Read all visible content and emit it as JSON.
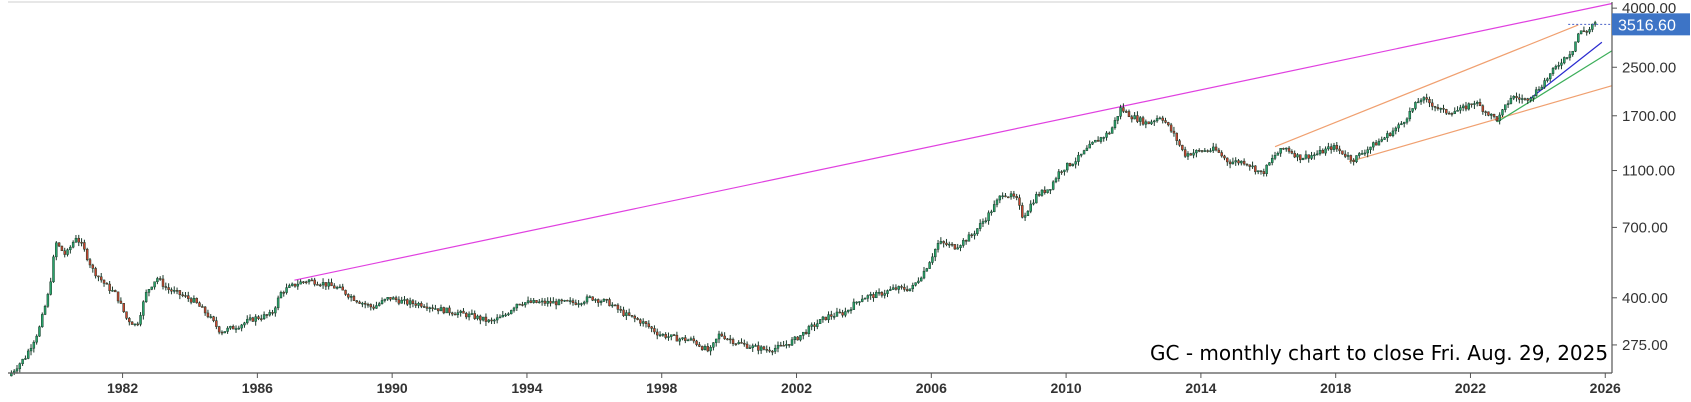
{
  "chart_data": {
    "type": "candlestick",
    "symbol": "GC",
    "interval": "monthly",
    "annotation": "GC - monthly chart to close Fri. Aug. 29, 2025",
    "last_price_label": "3516.60",
    "last_price": 3516.6,
    "y_scale": "log",
    "ylim": [
      220,
      4200
    ],
    "xlim": [
      1978.6,
      2026.2
    ],
    "y_ticks": [
      {
        "value": 275,
        "label": "275.00"
      },
      {
        "value": 400,
        "label": "400.00"
      },
      {
        "value": 700,
        "label": "700.00"
      },
      {
        "value": 1100,
        "label": "1100.00"
      },
      {
        "value": 1700,
        "label": "1700.00"
      },
      {
        "value": 2500,
        "label": "2500.00"
      },
      {
        "value": 4000,
        "label": "4000.00"
      }
    ],
    "x_ticks": [
      {
        "value": 1982,
        "label": "1982"
      },
      {
        "value": 1986,
        "label": "1986"
      },
      {
        "value": 1990,
        "label": "1990"
      },
      {
        "value": 1994,
        "label": "1994"
      },
      {
        "value": 1998,
        "label": "1998"
      },
      {
        "value": 2002,
        "label": "2002"
      },
      {
        "value": 2006,
        "label": "2006"
      },
      {
        "value": 2010,
        "label": "2010"
      },
      {
        "value": 2014,
        "label": "2014"
      },
      {
        "value": 2018,
        "label": "2018"
      },
      {
        "value": 2022,
        "label": "2022"
      },
      {
        "value": 2026,
        "label": "2026"
      }
    ],
    "price_path": [
      [
        1978.7,
        215
      ],
      [
        1979.2,
        250
      ],
      [
        1979.6,
        310
      ],
      [
        1979.9,
        420
      ],
      [
        1980.1,
        620
      ],
      [
        1980.4,
        560
      ],
      [
        1980.7,
        650
      ],
      [
        1980.9,
        600
      ],
      [
        1981.2,
        500
      ],
      [
        1981.6,
        440
      ],
      [
        1981.9,
        410
      ],
      [
        1982.2,
        340
      ],
      [
        1982.5,
        320
      ],
      [
        1982.8,
        420
      ],
      [
        1983.1,
        470
      ],
      [
        1983.4,
        430
      ],
      [
        1983.8,
        410
      ],
      [
        1984.2,
        390
      ],
      [
        1984.6,
        350
      ],
      [
        1985.0,
        305
      ],
      [
        1985.5,
        320
      ],
      [
        1986.0,
        340
      ],
      [
        1986.5,
        350
      ],
      [
        1986.8,
        420
      ],
      [
        1987.3,
        450
      ],
      [
        1987.6,
        460
      ],
      [
        1988.0,
        450
      ],
      [
        1988.5,
        430
      ],
      [
        1989.0,
        395
      ],
      [
        1989.5,
        370
      ],
      [
        1990.0,
        400
      ],
      [
        1990.5,
        385
      ],
      [
        1991.0,
        380
      ],
      [
        1991.5,
        365
      ],
      [
        1992.0,
        355
      ],
      [
        1992.5,
        345
      ],
      [
        1993.0,
        330
      ],
      [
        1993.4,
        345
      ],
      [
        1993.8,
        385
      ],
      [
        1994.3,
        385
      ],
      [
        1995.0,
        385
      ],
      [
        1995.5,
        385
      ],
      [
        1996.0,
        400
      ],
      [
        1996.5,
        385
      ],
      [
        1997.0,
        350
      ],
      [
        1997.5,
        330
      ],
      [
        1998.0,
        300
      ],
      [
        1998.5,
        290
      ],
      [
        1999.0,
        285
      ],
      [
        1999.5,
        260
      ],
      [
        1999.8,
        300
      ],
      [
        2000.3,
        280
      ],
      [
        2000.8,
        270
      ],
      [
        2001.2,
        265
      ],
      [
        2001.6,
        270
      ],
      [
        2002.0,
        285
      ],
      [
        2002.5,
        315
      ],
      [
        2003.0,
        345
      ],
      [
        2003.5,
        355
      ],
      [
        2004.0,
        400
      ],
      [
        2004.5,
        410
      ],
      [
        2005.0,
        430
      ],
      [
        2005.5,
        430
      ],
      [
        2005.9,
        500
      ],
      [
        2006.3,
        620
      ],
      [
        2006.8,
        600
      ],
      [
        2007.3,
        660
      ],
      [
        2007.8,
        780
      ],
      [
        2008.2,
        920
      ],
      [
        2008.6,
        880
      ],
      [
        2008.8,
        760
      ],
      [
        2009.2,
        900
      ],
      [
        2009.6,
        960
      ],
      [
        2009.9,
        1100
      ],
      [
        2010.4,
        1200
      ],
      [
        2010.9,
        1370
      ],
      [
        2011.4,
        1500
      ],
      [
        2011.7,
        1800
      ],
      [
        2012.0,
        1700
      ],
      [
        2012.5,
        1600
      ],
      [
        2012.9,
        1700
      ],
      [
        2013.3,
        1450
      ],
      [
        2013.6,
        1250
      ],
      [
        2014.0,
        1280
      ],
      [
        2014.5,
        1300
      ],
      [
        2014.9,
        1180
      ],
      [
        2015.4,
        1180
      ],
      [
        2015.9,
        1070
      ],
      [
        2016.3,
        1250
      ],
      [
        2016.6,
        1320
      ],
      [
        2017.0,
        1220
      ],
      [
        2017.5,
        1250
      ],
      [
        2018.0,
        1330
      ],
      [
        2018.6,
        1200
      ],
      [
        2019.0,
        1300
      ],
      [
        2019.5,
        1420
      ],
      [
        2020.0,
        1580
      ],
      [
        2020.6,
        1950
      ],
      [
        2020.9,
        1880
      ],
      [
        2021.3,
        1750
      ],
      [
        2021.8,
        1780
      ],
      [
        2022.2,
        1900
      ],
      [
        2022.7,
        1700
      ],
      [
        2022.9,
        1650
      ],
      [
        2023.3,
        1980
      ],
      [
        2023.7,
        1930
      ],
      [
        2024.0,
        2050
      ],
      [
        2024.4,
        2320
      ],
      [
        2024.8,
        2650
      ],
      [
        2025.1,
        2850
      ],
      [
        2025.3,
        3300
      ],
      [
        2025.6,
        3350
      ],
      [
        2025.7,
        3516.6
      ]
    ],
    "trendlines": [
      {
        "color": "#e040e0",
        "from": [
          1987.1,
          460
        ],
        "to": [
          2026.2,
          4150
        ]
      },
      {
        "color": "#f0a070",
        "from": [
          2016.2,
          1330
        ],
        "to": [
          2025.2,
          3500
        ]
      },
      {
        "color": "#f0a070",
        "from": [
          2018.4,
          1180
        ],
        "to": [
          2026.2,
          2160
        ]
      },
      {
        "color": "#3cae5a",
        "from": [
          2022.8,
          1620
        ],
        "to": [
          2026.2,
          2850
        ]
      },
      {
        "color": "#2a2ad0",
        "from": [
          2023.8,
          1960
        ],
        "to": [
          2025.9,
          3050
        ]
      }
    ],
    "colors": {
      "up": "#28a36a",
      "down": "#c8442e",
      "price_badge": "#3d74c6"
    }
  }
}
